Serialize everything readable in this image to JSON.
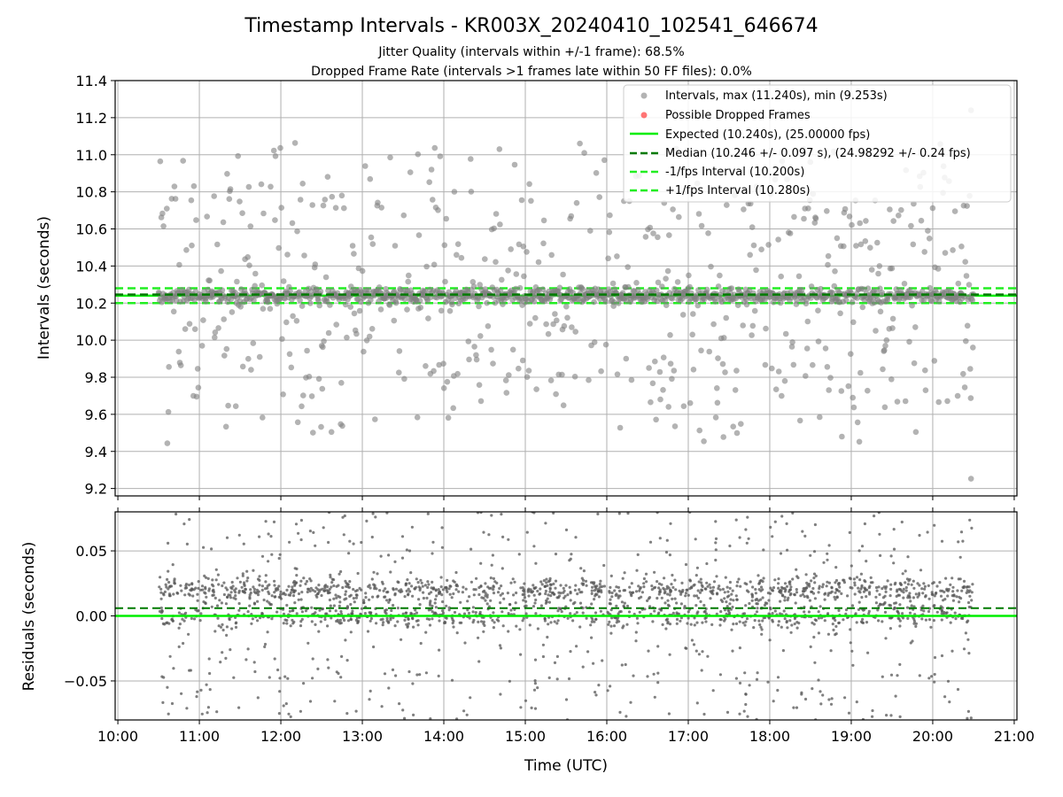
{
  "title": "Timestamp Intervals - KR003X_20240410_102541_646674",
  "subtitle_lines": [
    "Jitter Quality (intervals within +/-1 frame): 68.5%",
    "Dropped Frame Rate (intervals >1 frames late within 50 FF files): 0.0%"
  ],
  "colors": {
    "points": "#808080",
    "dropped": "#ff3b3b",
    "expected": "#00ee00",
    "median": "#007a00",
    "fps_bounds": "#22ee22",
    "grid": "#b0b0b0"
  },
  "chart_data": [
    {
      "type": "scatter",
      "panel": "intervals",
      "ylabel": "Intervals (seconds)",
      "xlim": [
        "09:58",
        "21:02"
      ],
      "ylim": [
        9.16,
        11.4
      ],
      "y_ticks": [
        "9.2",
        "9.4",
        "9.6",
        "9.8",
        "10.0",
        "10.2",
        "10.4",
        "10.6",
        "10.8",
        "11.0",
        "11.2",
        "11.4"
      ],
      "y_tick_values": [
        9.2,
        9.4,
        9.6,
        9.8,
        10.0,
        10.2,
        10.4,
        10.6,
        10.8,
        11.0,
        11.2,
        11.4
      ],
      "grid": true,
      "legend_position": "top-right",
      "legend": [
        {
          "label": "Intervals, max (11.240s), min (9.253s)",
          "kind": "marker",
          "color": "#808080"
        },
        {
          "label": "Possible Dropped Frames",
          "kind": "marker",
          "color": "#ff3b3b"
        },
        {
          "label": "Expected (10.240s), (25.00000 fps)",
          "kind": "solid",
          "color": "#00ee00"
        },
        {
          "label": "Median (10.246 +/- 0.097 s), (24.98292 +/- 0.24 fps)",
          "kind": "dashed",
          "color": "#007a00"
        },
        {
          "label": "-1/fps Interval (10.200s)",
          "kind": "dashed",
          "color": "#22ee22"
        },
        {
          "label": "+1/fps Interval (10.280s)",
          "kind": "dashed",
          "color": "#22ee22"
        }
      ],
      "lines": {
        "expected": 10.24,
        "median": 10.246,
        "minus_fps": 10.2,
        "plus_fps": 10.28
      },
      "series": {
        "time_range": [
          "10:30",
          "20:30"
        ],
        "point_count": 1500,
        "max": 11.24,
        "min": 9.253,
        "median": 10.246,
        "std": 0.097
      }
    },
    {
      "type": "scatter",
      "panel": "residuals",
      "xlabel": "Time (UTC)",
      "ylabel": "Residuals (seconds)",
      "xlim": [
        "09:58",
        "21:02"
      ],
      "ylim": [
        -0.08,
        0.08
      ],
      "x_ticks": [
        "10:00",
        "11:00",
        "12:00",
        "13:00",
        "14:00",
        "15:00",
        "16:00",
        "17:00",
        "18:00",
        "19:00",
        "20:00",
        "21:00"
      ],
      "y_ticks": [
        "−0.05",
        "0.00",
        "0.05"
      ],
      "y_tick_values": [
        -0.05,
        0.0,
        0.05
      ],
      "grid": true,
      "lines": {
        "zero": 0.0,
        "median_offset": 0.006
      },
      "series": {
        "time_range": [
          "10:30",
          "20:30"
        ],
        "point_count": 2200
      }
    }
  ]
}
